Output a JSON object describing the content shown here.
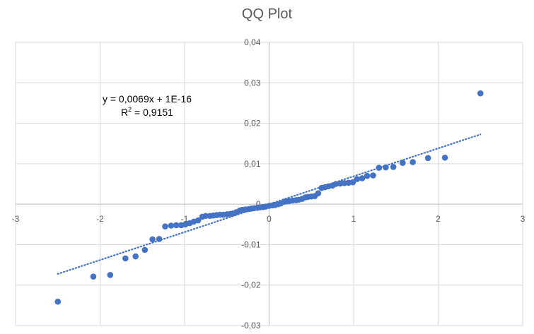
{
  "chart_data": {
    "type": "scatter",
    "title": "QQ Plot",
    "xlabel": "",
    "ylabel": "",
    "xlim": [
      -3,
      3
    ],
    "ylim": [
      -0.03,
      0.04
    ],
    "x_ticks": [
      -3,
      -2,
      -1,
      0,
      1,
      2,
      3
    ],
    "x_tick_labels": [
      "-3",
      "-2",
      "-1",
      "0",
      "1",
      "2",
      "3"
    ],
    "y_ticks": [
      -0.03,
      -0.02,
      -0.01,
      0,
      0.01,
      0.02,
      0.03,
      0.04
    ],
    "y_tick_labels": [
      "-0,03",
      "-0,02",
      "-0,01",
      "0",
      "0,01",
      "0,02",
      "0,03",
      "0,04"
    ],
    "grid": true,
    "legend": "none",
    "marker_color": "#4472C4",
    "trendline": {
      "style": "dotted",
      "slope": 0.0069,
      "intercept": 0,
      "x_range": [
        -2.5,
        2.5
      ],
      "equation_label": "y = 0,0069x + 1E-16",
      "r2_label_prefix": "R",
      "r2_label_sup": "2",
      "r2_label_rest": " = 0,9151"
    },
    "points": [
      {
        "x": -2.5,
        "y": -0.0241
      },
      {
        "x": -2.08,
        "y": -0.0179
      },
      {
        "x": -1.88,
        "y": -0.0175
      },
      {
        "x": -1.7,
        "y": -0.0134
      },
      {
        "x": -1.58,
        "y": -0.0129
      },
      {
        "x": -1.47,
        "y": -0.0113
      },
      {
        "x": -1.38,
        "y": -0.0087
      },
      {
        "x": -1.3,
        "y": -0.0086
      },
      {
        "x": -1.23,
        "y": -0.0055
      },
      {
        "x": -1.16,
        "y": -0.0053
      },
      {
        "x": -1.1,
        "y": -0.0052
      },
      {
        "x": -1.04,
        "y": -0.0052
      },
      {
        "x": -0.99,
        "y": -0.005
      },
      {
        "x": -0.94,
        "y": -0.0047
      },
      {
        "x": -0.89,
        "y": -0.0043
      },
      {
        "x": -0.84,
        "y": -0.004
      },
      {
        "x": -0.79,
        "y": -0.0031
      },
      {
        "x": -0.75,
        "y": -0.0029
      },
      {
        "x": -0.7,
        "y": -0.0029
      },
      {
        "x": -0.66,
        "y": -0.0028
      },
      {
        "x": -0.62,
        "y": -0.0027
      },
      {
        "x": -0.58,
        "y": -0.0026
      },
      {
        "x": -0.54,
        "y": -0.0026
      },
      {
        "x": -0.5,
        "y": -0.0025
      },
      {
        "x": -0.46,
        "y": -0.0024
      },
      {
        "x": -0.43,
        "y": -0.0023
      },
      {
        "x": -0.39,
        "y": -0.002
      },
      {
        "x": -0.35,
        "y": -0.0016
      },
      {
        "x": -0.32,
        "y": -0.0014
      },
      {
        "x": -0.28,
        "y": -0.0013
      },
      {
        "x": -0.24,
        "y": -0.0012
      },
      {
        "x": -0.21,
        "y": -0.0011
      },
      {
        "x": -0.18,
        "y": -0.001
      },
      {
        "x": -0.14,
        "y": -0.0009
      },
      {
        "x": -0.11,
        "y": -0.0008
      },
      {
        "x": -0.07,
        "y": -0.0007
      },
      {
        "x": -0.04,
        "y": -0.0006
      },
      {
        "x": 0.0,
        "y": -0.0004
      },
      {
        "x": 0.04,
        "y": -0.0003
      },
      {
        "x": 0.07,
        "y": -0.0002
      },
      {
        "x": 0.11,
        "y": 0.0
      },
      {
        "x": 0.14,
        "y": 0.0002
      },
      {
        "x": 0.18,
        "y": 0.0006
      },
      {
        "x": 0.21,
        "y": 0.0007
      },
      {
        "x": 0.24,
        "y": 0.0008
      },
      {
        "x": 0.28,
        "y": 0.0009
      },
      {
        "x": 0.32,
        "y": 0.001
      },
      {
        "x": 0.35,
        "y": 0.0011
      },
      {
        "x": 0.39,
        "y": 0.0013
      },
      {
        "x": 0.43,
        "y": 0.0017
      },
      {
        "x": 0.46,
        "y": 0.0018
      },
      {
        "x": 0.5,
        "y": 0.0019
      },
      {
        "x": 0.54,
        "y": 0.002
      },
      {
        "x": 0.58,
        "y": 0.0027
      },
      {
        "x": 0.62,
        "y": 0.004
      },
      {
        "x": 0.66,
        "y": 0.0042
      },
      {
        "x": 0.7,
        "y": 0.0044
      },
      {
        "x": 0.75,
        "y": 0.0046
      },
      {
        "x": 0.79,
        "y": 0.005
      },
      {
        "x": 0.84,
        "y": 0.0051
      },
      {
        "x": 0.89,
        "y": 0.0052
      },
      {
        "x": 0.94,
        "y": 0.0053
      },
      {
        "x": 0.99,
        "y": 0.0054
      },
      {
        "x": 1.04,
        "y": 0.0062
      },
      {
        "x": 1.1,
        "y": 0.0064
      },
      {
        "x": 1.16,
        "y": 0.007
      },
      {
        "x": 1.23,
        "y": 0.0071
      },
      {
        "x": 1.3,
        "y": 0.009
      },
      {
        "x": 1.38,
        "y": 0.0091
      },
      {
        "x": 1.47,
        "y": 0.0092
      },
      {
        "x": 1.58,
        "y": 0.0102
      },
      {
        "x": 1.7,
        "y": 0.0104
      },
      {
        "x": 1.88,
        "y": 0.0114
      },
      {
        "x": 2.08,
        "y": 0.0115
      },
      {
        "x": 2.5,
        "y": 0.0274
      }
    ]
  }
}
